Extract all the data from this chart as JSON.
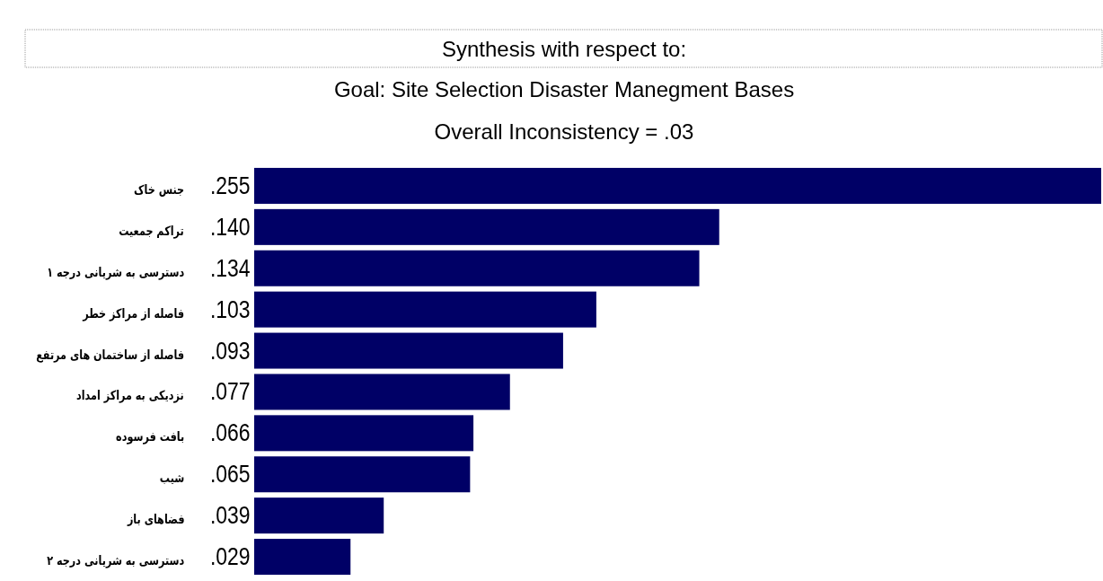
{
  "chart_data": {
    "type": "bar",
    "orientation": "horizontal",
    "title": "Synthesis with respect to:",
    "subtitle": "Goal: Site Selection Disaster Manegment Bases",
    "annotations": [
      "Overall Inconsistency = .03"
    ],
    "categories": [
      "جنس خاک",
      "تراکم جمعیت",
      "دسترسی به شریانی درجه ۱",
      "فاصله از مراکز خطر",
      "فاصله از ساختمان های مرتفع",
      "نزدیکی به مراکز امداد",
      "بافت فرسوده",
      "شیب",
      "فضاهای باز",
      "دسترسی به شریانی درجه ۲"
    ],
    "values": [
      0.255,
      0.14,
      0.134,
      0.103,
      0.093,
      0.077,
      0.066,
      0.065,
      0.039,
      0.029
    ],
    "value_labels": [
      ".255",
      ".140",
      ".134",
      ".103",
      ".093",
      ".077",
      ".066",
      ".065",
      ".039",
      ".029"
    ],
    "color": "#000066",
    "relative": false
  }
}
